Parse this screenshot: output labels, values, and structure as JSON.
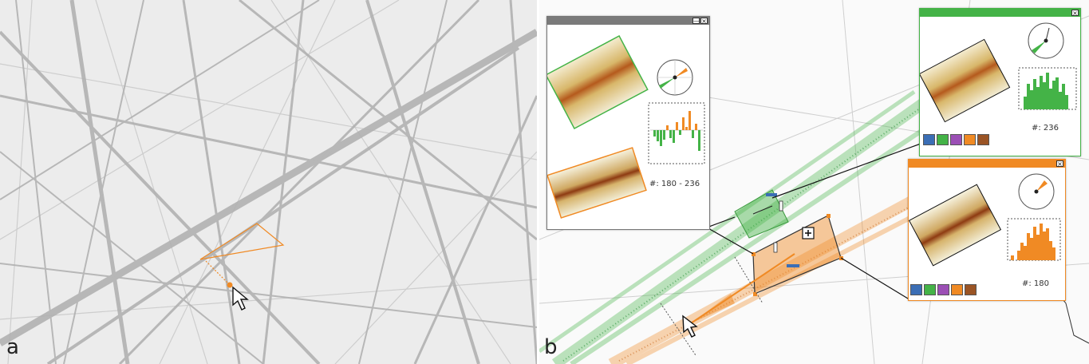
{
  "labels": {
    "panel_a": "a",
    "panel_b": "b"
  },
  "colors": {
    "green": "#44b347",
    "orange": "#f08a24",
    "blue": "#3b6eb5",
    "purple": "#9b4fb5",
    "brown": "#9a5425",
    "titlebar_gray": "#7a7a7a"
  },
  "compare_window": {
    "buttons": {
      "minimize": "—",
      "close": "×"
    },
    "count_text": "#: 180 - 236"
  },
  "green_window": {
    "close": "×",
    "count_text": "#: 236",
    "swatches": [
      "blue",
      "green",
      "purple",
      "orange",
      "brown"
    ]
  },
  "orange_window": {
    "close": "×",
    "count_text": "#: 180",
    "swatches": [
      "blue",
      "green",
      "purple",
      "orange",
      "brown"
    ]
  },
  "icons": {
    "cursor_a": "arrow-cursor-icon",
    "cursor_b": "arrow-cursor-icon",
    "add_selection": "plus-square-icon",
    "compass": "compass-rose-icon"
  }
}
